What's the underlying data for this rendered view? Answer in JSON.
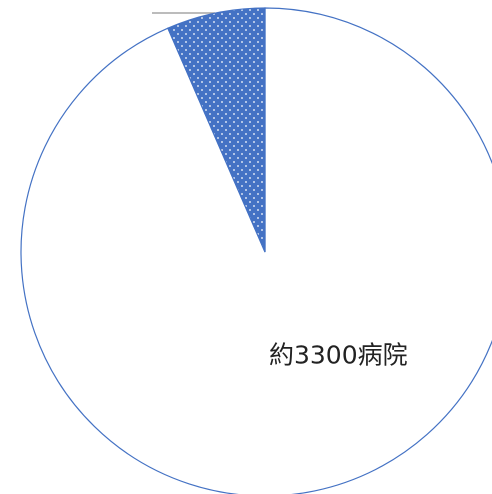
{
  "chart_data": {
    "type": "pie",
    "values": [
      3300,
      230
    ],
    "value_labels": [
      "約3300病院",
      null
    ],
    "colors": [
      "#ffffff",
      "#4472c4"
    ],
    "fill_pattern": [
      null,
      "dots"
    ],
    "edge_color": "#4472c4"
  }
}
